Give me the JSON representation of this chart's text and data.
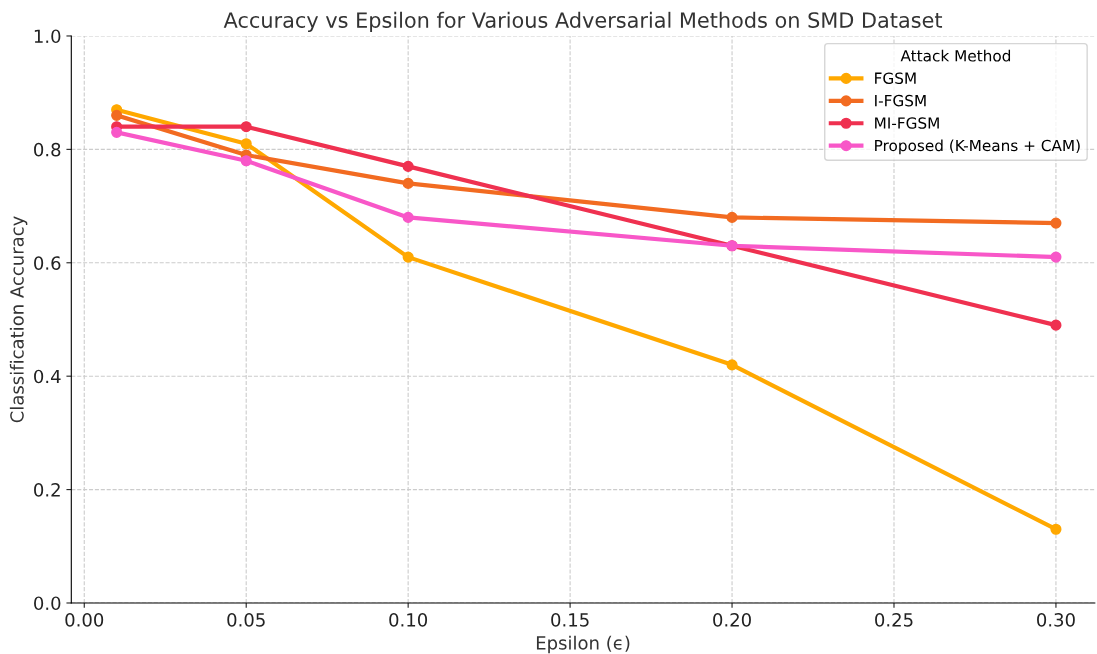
{
  "chart_data": {
    "type": "line",
    "title": "Accuracy vs Epsilon for Various Adversarial Methods on SMD Dataset",
    "xlabel": "Epsilon (ϵ)",
    "ylabel": "Classification Accuracy",
    "legend_title": "Attack Method",
    "x": [
      0.01,
      0.05,
      0.1,
      0.2,
      0.3
    ],
    "series": [
      {
        "name": "FGSM",
        "color": "#ffa800",
        "values": [
          0.87,
          0.81,
          0.61,
          0.42,
          0.13
        ]
      },
      {
        "name": "I-FGSM",
        "color": "#f26b21",
        "values": [
          0.86,
          0.79,
          0.74,
          0.68,
          0.67
        ]
      },
      {
        "name": "MI-FGSM",
        "color": "#ef3150",
        "values": [
          0.84,
          0.84,
          0.77,
          0.63,
          0.49
        ]
      },
      {
        "name": "Proposed (K-Means + CAM)",
        "color": "#f857c8",
        "values": [
          0.83,
          0.78,
          0.68,
          0.63,
          0.61
        ]
      }
    ],
    "xlim": [
      -0.004,
      0.312
    ],
    "ylim": [
      0,
      1
    ],
    "xticks": [
      {
        "value": 0,
        "label": "0.00"
      },
      {
        "value": 0.05,
        "label": "0.05"
      },
      {
        "value": 0.1,
        "label": "0.10"
      },
      {
        "value": 0.15,
        "label": "0.15"
      },
      {
        "value": 0.2,
        "label": "0.20"
      },
      {
        "value": 0.25,
        "label": "0.25"
      },
      {
        "value": 0.3,
        "label": "0.30"
      }
    ],
    "yticks": [
      {
        "value": 0,
        "label": "0.0"
      },
      {
        "value": 0.2,
        "label": "0.2"
      },
      {
        "value": 0.4,
        "label": "0.4"
      },
      {
        "value": 0.6,
        "label": "0.6"
      },
      {
        "value": 0.8,
        "label": "0.8"
      },
      {
        "value": 1,
        "label": "1.0"
      }
    ],
    "grid": true,
    "legend": "top right",
    "marker": "circle",
    "line_style": "solid"
  }
}
